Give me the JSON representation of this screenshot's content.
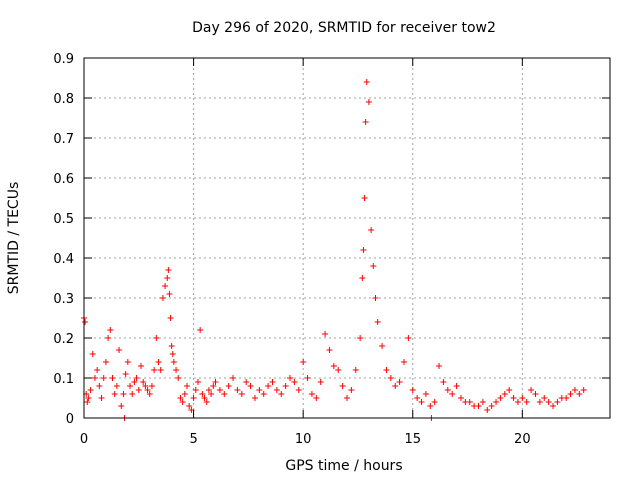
{
  "chart_data": {
    "type": "scatter",
    "title": "Day 296 of 2020, SRMTID for receiver tow2",
    "xlabel": "GPS time / hours",
    "ylabel": "SRMTID / TECUs",
    "xlim": [
      0,
      24
    ],
    "ylim": [
      0,
      0.9
    ],
    "x_ticks": [
      0,
      5,
      10,
      15,
      20
    ],
    "x_tick_labels": [
      "0",
      "5",
      "10",
      "15",
      "20"
    ],
    "y_ticks": [
      0,
      0.1,
      0.2,
      0.3,
      0.4,
      0.5,
      0.6,
      0.7,
      0.8,
      0.9
    ],
    "y_tick_labels": [
      "0",
      "0.1",
      "0.2",
      "0.3",
      "0.4",
      "0.5",
      "0.6",
      "0.7",
      "0.8",
      "0.9"
    ],
    "grid": true,
    "marker": "+",
    "marker_color": "#ff0000",
    "series": [
      {
        "name": "SRMTID",
        "x": [
          0.0,
          0.05,
          0.1,
          0.15,
          0.2,
          0.3,
          0.4,
          0.5,
          0.6,
          0.7,
          0.8,
          0.9,
          1.0,
          1.1,
          1.2,
          1.3,
          1.4,
          1.5,
          1.6,
          1.7,
          1.8,
          1.9,
          2.0,
          2.1,
          2.2,
          2.3,
          2.4,
          2.5,
          2.6,
          2.7,
          2.8,
          2.9,
          3.0,
          3.1,
          3.2,
          3.3,
          3.4,
          3.5,
          3.6,
          3.7,
          3.8,
          3.85,
          3.9,
          3.95,
          4.0,
          4.05,
          4.1,
          4.2,
          4.3,
          4.4,
          4.5,
          4.6,
          4.7,
          4.8,
          4.9,
          5.0,
          5.1,
          5.2,
          5.3,
          5.4,
          5.5,
          5.6,
          5.7,
          5.8,
          5.9,
          6.0,
          6.2,
          6.4,
          6.6,
          6.8,
          7.0,
          7.2,
          7.4,
          7.6,
          7.8,
          8.0,
          8.2,
          8.4,
          8.6,
          8.8,
          9.0,
          9.2,
          9.4,
          9.6,
          9.8,
          10.0,
          10.2,
          10.4,
          10.6,
          10.8,
          11.0,
          11.2,
          11.4,
          11.6,
          11.8,
          12.0,
          12.2,
          12.4,
          12.6,
          12.7,
          12.75,
          12.8,
          12.85,
          12.9,
          13.0,
          13.1,
          13.2,
          13.3,
          13.4,
          13.6,
          13.8,
          14.0,
          14.2,
          14.4,
          14.6,
          14.8,
          15.0,
          15.2,
          15.4,
          15.6,
          15.8,
          16.0,
          16.2,
          16.4,
          16.6,
          16.8,
          17.0,
          17.2,
          17.4,
          17.6,
          17.8,
          18.0,
          18.2,
          18.4,
          18.6,
          18.8,
          19.0,
          19.2,
          19.4,
          19.6,
          19.8,
          20.0,
          20.2,
          20.4,
          20.6,
          20.8,
          21.0,
          21.2,
          21.4,
          21.6,
          21.8,
          22.0,
          22.2,
          22.4,
          22.6,
          22.8,
          1.85,
          15.85
        ],
        "y": [
          0.25,
          0.24,
          0.06,
          0.04,
          0.05,
          0.07,
          0.16,
          0.1,
          0.12,
          0.08,
          0.05,
          0.1,
          0.14,
          0.2,
          0.22,
          0.1,
          0.06,
          0.08,
          0.17,
          0.03,
          0.06,
          0.11,
          0.14,
          0.08,
          0.06,
          0.09,
          0.1,
          0.07,
          0.13,
          0.09,
          0.08,
          0.07,
          0.06,
          0.08,
          0.12,
          0.2,
          0.14,
          0.12,
          0.3,
          0.33,
          0.35,
          0.37,
          0.31,
          0.25,
          0.18,
          0.16,
          0.14,
          0.12,
          0.1,
          0.05,
          0.04,
          0.06,
          0.08,
          0.03,
          0.02,
          0.05,
          0.07,
          0.09,
          0.22,
          0.06,
          0.05,
          0.04,
          0.07,
          0.06,
          0.08,
          0.09,
          0.07,
          0.06,
          0.08,
          0.1,
          0.07,
          0.06,
          0.09,
          0.08,
          0.05,
          0.07,
          0.06,
          0.08,
          0.09,
          0.07,
          0.06,
          0.08,
          0.1,
          0.09,
          0.07,
          0.14,
          0.1,
          0.06,
          0.05,
          0.09,
          0.21,
          0.17,
          0.13,
          0.12,
          0.08,
          0.05,
          0.07,
          0.12,
          0.2,
          0.35,
          0.42,
          0.55,
          0.74,
          0.84,
          0.79,
          0.47,
          0.38,
          0.3,
          0.24,
          0.18,
          0.12,
          0.1,
          0.08,
          0.09,
          0.14,
          0.2,
          0.07,
          0.05,
          0.04,
          0.06,
          0.03,
          0.04,
          0.13,
          0.09,
          0.07,
          0.06,
          0.08,
          0.05,
          0.04,
          0.04,
          0.03,
          0.03,
          0.04,
          0.02,
          0.03,
          0.04,
          0.05,
          0.06,
          0.07,
          0.05,
          0.04,
          0.05,
          0.04,
          0.07,
          0.06,
          0.04,
          0.05,
          0.04,
          0.03,
          0.04,
          0.05,
          0.05,
          0.06,
          0.07,
          0.06,
          0.07,
          0.0,
          0.0
        ]
      }
    ]
  }
}
